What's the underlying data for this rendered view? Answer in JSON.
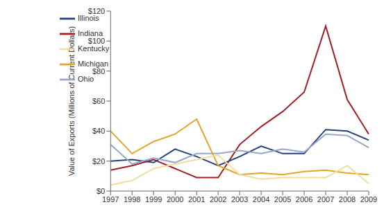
{
  "chart_data": {
    "type": "line",
    "y_label": "Value of Exports (Millions of Current Dollars)",
    "categories": [
      "1997",
      "1998",
      "1999",
      "2000",
      "2001",
      "2002",
      "2003",
      "2004",
      "2005",
      "2006",
      "2007",
      "2008",
      "2009"
    ],
    "series": [
      {
        "name": "Indiana",
        "color": "#a31d24",
        "values": [
          14,
          17,
          21,
          15,
          9,
          9,
          31,
          43,
          53,
          66,
          110,
          61,
          38
        ]
      },
      {
        "name": "Illinois",
        "color": "#23407f",
        "values": [
          20,
          21,
          19,
          28,
          23,
          17,
          23,
          30,
          25,
          25,
          41,
          40,
          34
        ]
      },
      {
        "name": "Ohio",
        "color": "#97a7c9",
        "values": [
          31,
          18,
          22,
          19,
          25,
          25,
          27,
          25,
          28,
          26,
          38,
          37,
          29
        ]
      },
      {
        "name": "Michigan",
        "color": "#e3a42a",
        "values": [
          40,
          25,
          33,
          38,
          48,
          17,
          11,
          12,
          11,
          13,
          14,
          12,
          11
        ]
      },
      {
        "name": "Kentucky",
        "color": "#f4dc9c",
        "values": [
          4,
          7,
          15,
          18,
          21,
          24,
          11,
          8,
          9,
          9,
          9,
          17,
          5
        ]
      }
    ],
    "ylim": [
      0,
      120
    ],
    "yticks": [
      {
        "value": 0,
        "label": "$0"
      },
      {
        "value": 20,
        "label": "$20"
      },
      {
        "value": 40,
        "label": "$40"
      },
      {
        "value": 60,
        "label": "$60"
      },
      {
        "value": 80,
        "label": "$80"
      },
      {
        "value": 100,
        "label": "$100"
      },
      {
        "value": 120,
        "label": "$120"
      }
    ],
    "grid": false,
    "legend": "upper left"
  }
}
